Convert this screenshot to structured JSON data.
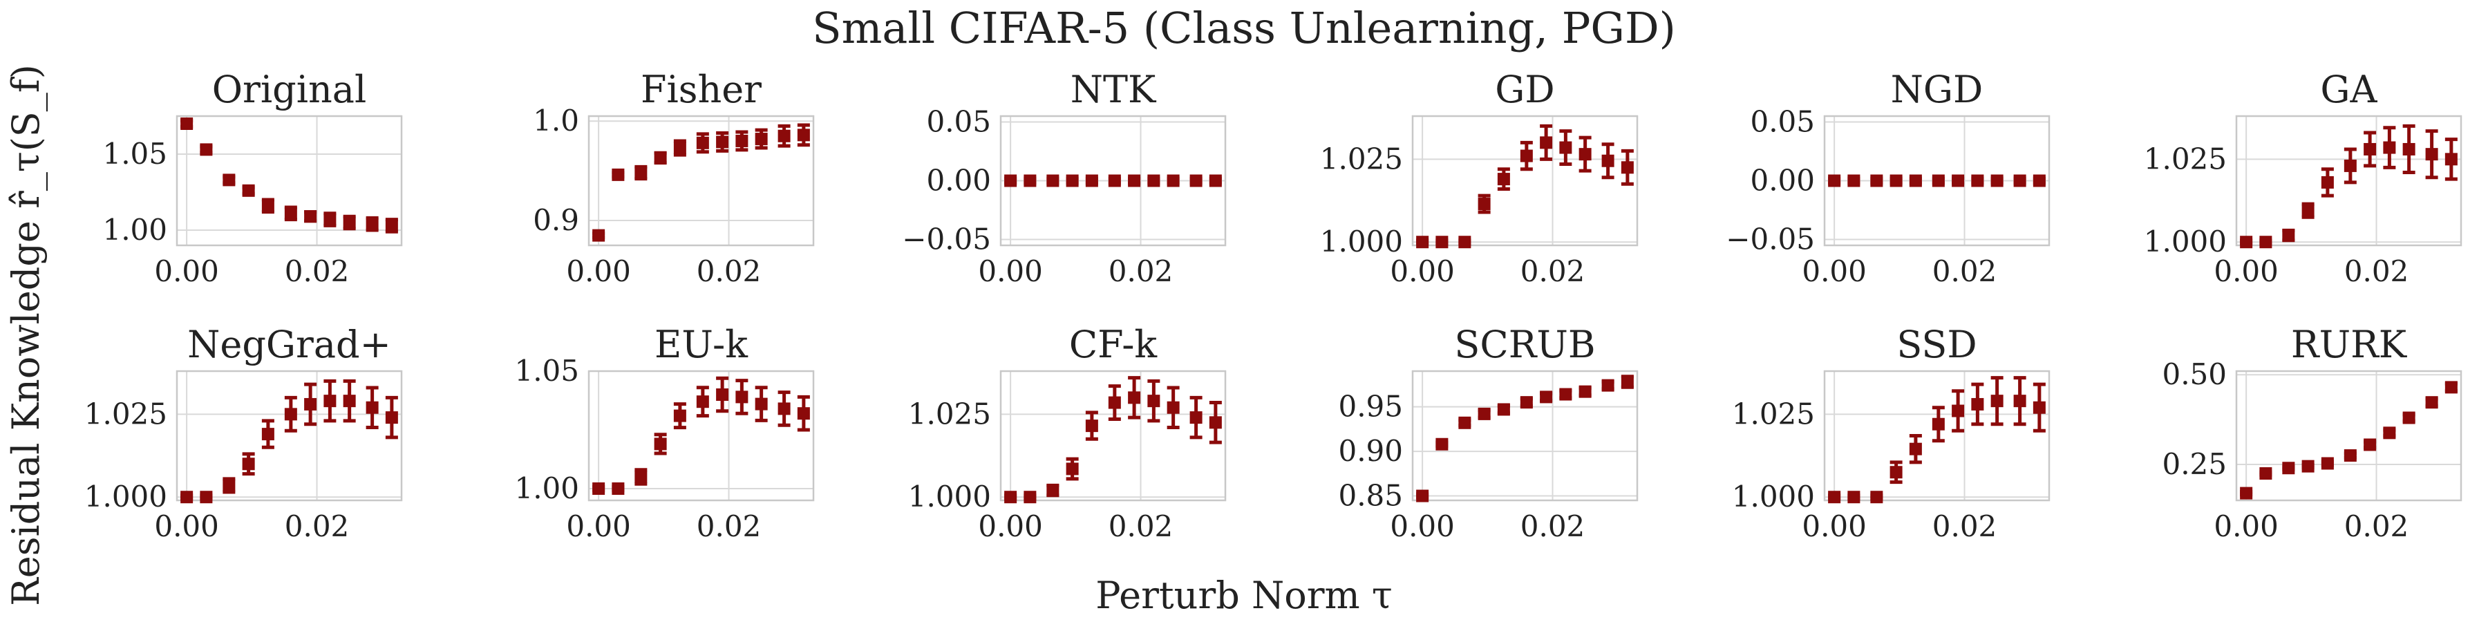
{
  "figure": {
    "title": "Small CIFAR-5 (Class Unlearning, PGD)",
    "xlabel": "Perturb Norm τ",
    "ylabel": "Residual Knowledge r̂_τ(S_f)"
  },
  "colors": {
    "marker": "#8b0a0a",
    "grid": "#d9d9d9",
    "frame": "#c8c8c8",
    "text": "#222222"
  },
  "chart_data": [
    {
      "type": "scatter",
      "title": "Original",
      "row": 0,
      "col": 0,
      "xlim": [
        -0.0015,
        0.033
      ],
      "ylim": [
        0.99,
        1.075
      ],
      "xticks": [
        0.0,
        0.02
      ],
      "xticklabels": [
        "0.00",
        "0.02"
      ],
      "yticks": [
        1.0,
        1.05
      ],
      "yticklabels": [
        "1.00",
        "1.05"
      ],
      "x": [
        0.0,
        0.003,
        0.0065,
        0.0095,
        0.0125,
        0.016,
        0.019,
        0.022,
        0.025,
        0.0285,
        0.0315
      ],
      "y": [
        1.07,
        1.053,
        1.033,
        1.026,
        1.016,
        1.011,
        1.009,
        1.007,
        1.005,
        1.004,
        1.003
      ],
      "err": [
        0.002,
        0.002,
        0.002,
        0.002,
        0.004,
        0.004,
        0.003,
        0.004,
        0.004,
        0.004,
        0.004
      ]
    },
    {
      "type": "scatter",
      "title": "Fisher",
      "row": 0,
      "col": 1,
      "xlim": [
        -0.0015,
        0.033
      ],
      "ylim": [
        0.875,
        1.005
      ],
      "xticks": [
        0.0,
        0.02
      ],
      "xticklabels": [
        "0.00",
        "0.02"
      ],
      "yticks": [
        0.9,
        1.0
      ],
      "yticklabels": [
        "0.9",
        "1.0"
      ],
      "x": [
        0.0,
        0.003,
        0.0065,
        0.0095,
        0.0125,
        0.016,
        0.019,
        0.022,
        0.025,
        0.0285,
        0.0315
      ],
      "y": [
        0.885,
        0.946,
        0.948,
        0.963,
        0.973,
        0.978,
        0.979,
        0.98,
        0.982,
        0.985,
        0.986
      ],
      "err": [
        0.002,
        0.002,
        0.006,
        0.005,
        0.007,
        0.009,
        0.009,
        0.009,
        0.009,
        0.01,
        0.01
      ]
    },
    {
      "type": "scatter",
      "title": "NTK",
      "row": 0,
      "col": 2,
      "xlim": [
        -0.0015,
        0.033
      ],
      "ylim": [
        -0.055,
        0.055
      ],
      "xticks": [
        0.0,
        0.02
      ],
      "xticklabels": [
        "0.00",
        "0.02"
      ],
      "yticks": [
        -0.05,
        0.0,
        0.05
      ],
      "yticklabels": [
        "−0.05",
        "0.00",
        "0.05"
      ],
      "x": [
        0.0,
        0.003,
        0.0065,
        0.0095,
        0.0125,
        0.016,
        0.019,
        0.022,
        0.025,
        0.0285,
        0.0315
      ],
      "y": [
        0,
        0,
        0,
        0,
        0,
        0,
        0,
        0,
        0,
        0,
        0
      ],
      "err": [
        0.002,
        0.002,
        0.002,
        0.002,
        0.002,
        0.002,
        0.002,
        0.002,
        0.002,
        0.002,
        0.002
      ]
    },
    {
      "type": "scatter",
      "title": "GD",
      "row": 0,
      "col": 3,
      "xlim": [
        -0.0015,
        0.033
      ],
      "ylim": [
        0.999,
        1.038
      ],
      "xticks": [
        0.0,
        0.02
      ],
      "xticklabels": [
        "0.00",
        "0.02"
      ],
      "yticks": [
        1.0,
        1.025
      ],
      "yticklabels": [
        "1.000",
        "1.025"
      ],
      "x": [
        0.0,
        0.003,
        0.0065,
        0.0095,
        0.0125,
        0.016,
        0.019,
        0.022,
        0.025,
        0.0285,
        0.0315
      ],
      "y": [
        1.0,
        1.0,
        1.0,
        1.0115,
        1.019,
        1.026,
        1.03,
        1.0285,
        1.0265,
        1.0245,
        1.0225
      ],
      "err": [
        0.0005,
        0.0005,
        0.0005,
        0.0025,
        0.003,
        0.004,
        0.005,
        0.005,
        0.005,
        0.005,
        0.005
      ]
    },
    {
      "type": "scatter",
      "title": "NGD",
      "row": 0,
      "col": 4,
      "xlim": [
        -0.0015,
        0.033
      ],
      "ylim": [
        -0.055,
        0.055
      ],
      "xticks": [
        0.0,
        0.02
      ],
      "xticklabels": [
        "0.00",
        "0.02"
      ],
      "yticks": [
        -0.05,
        0.0,
        0.05
      ],
      "yticklabels": [
        "−0.05",
        "0.00",
        "0.05"
      ],
      "x": [
        0.0,
        0.003,
        0.0065,
        0.0095,
        0.0125,
        0.016,
        0.019,
        0.022,
        0.025,
        0.0285,
        0.0315
      ],
      "y": [
        0,
        0,
        0,
        0,
        0,
        0,
        0,
        0,
        0,
        0,
        0
      ],
      "err": [
        0.002,
        0.002,
        0.002,
        0.002,
        0.002,
        0.002,
        0.002,
        0.002,
        0.002,
        0.002,
        0.002
      ]
    },
    {
      "type": "scatter",
      "title": "GA",
      "row": 0,
      "col": 5,
      "xlim": [
        -0.0015,
        0.033
      ],
      "ylim": [
        0.999,
        1.038
      ],
      "xticks": [
        0.0,
        0.02
      ],
      "xticklabels": [
        "0.00",
        "0.02"
      ],
      "yticks": [
        1.0,
        1.025
      ],
      "yticklabels": [
        "1.000",
        "1.025"
      ],
      "x": [
        0.0,
        0.003,
        0.0065,
        0.0095,
        0.0125,
        0.016,
        0.019,
        0.022,
        0.025,
        0.0285,
        0.0315
      ],
      "y": [
        1.0,
        1.0,
        1.002,
        1.0095,
        1.018,
        1.023,
        1.028,
        1.0285,
        1.028,
        1.0265,
        1.025
      ],
      "err": [
        0.0005,
        0.0005,
        0.0015,
        0.002,
        0.004,
        0.005,
        0.005,
        0.006,
        0.007,
        0.007,
        0.006
      ]
    },
    {
      "type": "scatter",
      "title": "NegGrad+",
      "row": 1,
      "col": 0,
      "xlim": [
        -0.0015,
        0.033
      ],
      "ylim": [
        0.999,
        1.038
      ],
      "xticks": [
        0.0,
        0.02
      ],
      "xticklabels": [
        "0.00",
        "0.02"
      ],
      "yticks": [
        1.0,
        1.025
      ],
      "yticklabels": [
        "1.000",
        "1.025"
      ],
      "x": [
        0.0,
        0.003,
        0.0065,
        0.0095,
        0.0125,
        0.016,
        0.019,
        0.022,
        0.025,
        0.0285,
        0.0315
      ],
      "y": [
        1.0,
        1.0,
        1.0035,
        1.01,
        1.019,
        1.025,
        1.028,
        1.029,
        1.029,
        1.027,
        1.024
      ],
      "err": [
        0.0005,
        0.0005,
        0.002,
        0.003,
        0.004,
        0.005,
        0.006,
        0.006,
        0.006,
        0.006,
        0.006
      ]
    },
    {
      "type": "scatter",
      "title": "EU-k",
      "row": 1,
      "col": 1,
      "xlim": [
        -0.0015,
        0.033
      ],
      "ylim": [
        0.995,
        1.05
      ],
      "xticks": [
        0.0,
        0.02
      ],
      "xticklabels": [
        "0.00",
        "0.02"
      ],
      "yticks": [
        1.0,
        1.05
      ],
      "yticklabels": [
        "1.00",
        "1.05"
      ],
      "x": [
        0.0,
        0.003,
        0.0065,
        0.0095,
        0.0125,
        0.016,
        0.019,
        0.022,
        0.025,
        0.0285,
        0.0315
      ],
      "y": [
        1.0,
        1.0,
        1.005,
        1.019,
        1.031,
        1.037,
        1.04,
        1.039,
        1.036,
        1.034,
        1.032
      ],
      "err": [
        0.0008,
        0.0008,
        0.003,
        0.004,
        0.005,
        0.006,
        0.007,
        0.007,
        0.007,
        0.007,
        0.007
      ]
    },
    {
      "type": "scatter",
      "title": "CF-k",
      "row": 1,
      "col": 2,
      "xlim": [
        -0.0015,
        0.033
      ],
      "ylim": [
        0.999,
        1.038
      ],
      "xticks": [
        0.0,
        0.02
      ],
      "xticklabels": [
        "0.00",
        "0.02"
      ],
      "yticks": [
        1.0,
        1.025
      ],
      "yticklabels": [
        "1.000",
        "1.025"
      ],
      "x": [
        0.0,
        0.003,
        0.0065,
        0.0095,
        0.0125,
        0.016,
        0.019,
        0.022,
        0.025,
        0.0285,
        0.0315
      ],
      "y": [
        1.0,
        1.0,
        1.002,
        1.0085,
        1.0215,
        1.0285,
        1.03,
        1.029,
        1.027,
        1.024,
        1.0225
      ],
      "err": [
        0.0005,
        0.0005,
        0.0015,
        0.003,
        0.004,
        0.005,
        0.006,
        0.006,
        0.006,
        0.006,
        0.006
      ]
    },
    {
      "type": "scatter",
      "title": "SCRUB",
      "row": 1,
      "col": 3,
      "xlim": [
        -0.0015,
        0.033
      ],
      "ylim": [
        0.845,
        0.99
      ],
      "xticks": [
        0.0,
        0.02
      ],
      "xticklabels": [
        "0.00",
        "0.02"
      ],
      "yticks": [
        0.85,
        0.9,
        0.95
      ],
      "yticklabels": [
        "0.85",
        "0.90",
        "0.95"
      ],
      "x": [
        0.0,
        0.003,
        0.0065,
        0.0095,
        0.0125,
        0.016,
        0.019,
        0.022,
        0.025,
        0.0285,
        0.0315
      ],
      "y": [
        0.85,
        0.908,
        0.932,
        0.942,
        0.947,
        0.955,
        0.961,
        0.964,
        0.967,
        0.974,
        0.978
      ],
      "err": [
        0.002,
        0.002,
        0.003,
        0.004,
        0.004,
        0.004,
        0.004,
        0.004,
        0.004,
        0.004,
        0.006
      ]
    },
    {
      "type": "scatter",
      "title": "SSD",
      "row": 1,
      "col": 4,
      "xlim": [
        -0.0015,
        0.033
      ],
      "ylim": [
        0.999,
        1.038
      ],
      "xticks": [
        0.0,
        0.02
      ],
      "xticklabels": [
        "0.00",
        "0.02"
      ],
      "yticks": [
        1.0,
        1.025
      ],
      "yticklabels": [
        "1.000",
        "1.025"
      ],
      "x": [
        0.0,
        0.003,
        0.0065,
        0.0095,
        0.0125,
        0.016,
        0.019,
        0.022,
        0.025,
        0.0285,
        0.0315
      ],
      "y": [
        1.0,
        1.0,
        1.0,
        1.0075,
        1.0145,
        1.022,
        1.026,
        1.028,
        1.029,
        1.029,
        1.027
      ],
      "err": [
        0.0005,
        0.0005,
        0.0005,
        0.003,
        0.004,
        0.005,
        0.006,
        0.006,
        0.007,
        0.007,
        0.007
      ]
    },
    {
      "type": "scatter",
      "title": "RURK",
      "row": 1,
      "col": 5,
      "xlim": [
        -0.0015,
        0.033
      ],
      "ylim": [
        0.15,
        0.51
      ],
      "xticks": [
        0.0,
        0.02
      ],
      "xticklabels": [
        "0.00",
        "0.02"
      ],
      "yticks": [
        0.25,
        0.5
      ],
      "yticklabels": [
        "0.25",
        "0.50"
      ],
      "x": [
        0.0,
        0.003,
        0.0065,
        0.0095,
        0.0125,
        0.016,
        0.019,
        0.022,
        0.025,
        0.0285,
        0.0315
      ],
      "y": [
        0.17,
        0.225,
        0.24,
        0.245,
        0.253,
        0.275,
        0.305,
        0.338,
        0.38,
        0.423,
        0.465
      ],
      "err": [
        0.004,
        0.004,
        0.004,
        0.004,
        0.005,
        0.006,
        0.008,
        0.008,
        0.009,
        0.01,
        0.01
      ]
    }
  ]
}
